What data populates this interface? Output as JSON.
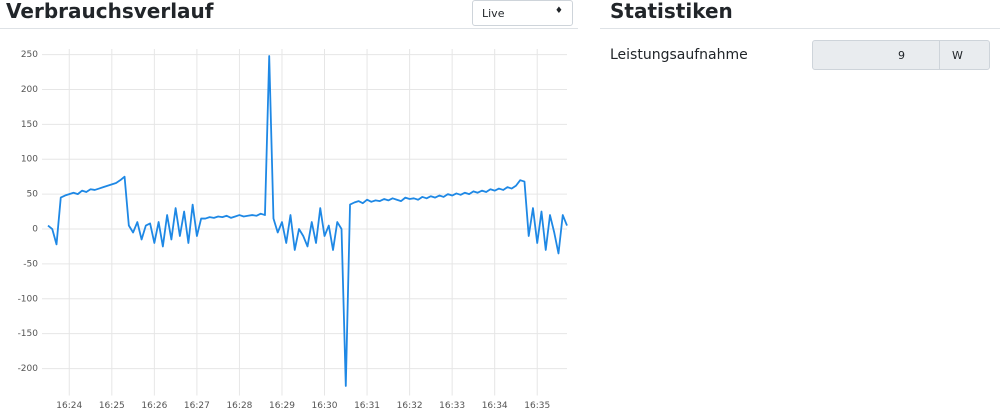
{
  "chart_data": {
    "type": "line",
    "title": "Verbrauchsverlauf",
    "categories": [
      null,
      null,
      null,
      null,
      null,
      "16:24",
      null,
      null,
      null,
      null,
      null,
      null,
      null,
      null,
      null,
      "16:25",
      null,
      null,
      null,
      null,
      null,
      null,
      null,
      null,
      null,
      "16:26",
      null,
      null,
      null,
      null,
      null,
      null,
      null,
      null,
      null,
      "16:27",
      null,
      null,
      null,
      null,
      null,
      null,
      null,
      null,
      null,
      "16:28",
      null,
      null,
      null,
      null,
      null,
      null,
      null,
      null,
      null,
      "16:29",
      null,
      null,
      null,
      null,
      null,
      null,
      null,
      null,
      null,
      "16:30",
      null,
      null,
      null,
      null,
      null,
      null,
      null,
      null,
      null,
      "16:31",
      null,
      null,
      null,
      null,
      null,
      null,
      null,
      null,
      null,
      "16:32",
      null,
      null,
      null,
      null,
      null,
      null,
      null,
      null,
      null,
      "16:33",
      null,
      null,
      null,
      null,
      null,
      null,
      null,
      null,
      null,
      "16:34",
      null,
      null,
      null,
      null,
      null,
      null,
      null,
      null,
      null,
      "16:35",
      null,
      null,
      null,
      null,
      null,
      null,
      null
    ],
    "values": [
      5,
      0,
      -22,
      45,
      48,
      50,
      52,
      50,
      55,
      53,
      57,
      56,
      58,
      60,
      62,
      64,
      66,
      70,
      75,
      5,
      -5,
      10,
      -15,
      5,
      8,
      -20,
      10,
      -25,
      20,
      -15,
      30,
      -10,
      25,
      -20,
      35,
      -10,
      15,
      15,
      17,
      16,
      18,
      17,
      19,
      16,
      18,
      20,
      18,
      19,
      20,
      19,
      22,
      20,
      248,
      15,
      -5,
      10,
      -20,
      20,
      -30,
      0,
      -10,
      -25,
      10,
      -20,
      30,
      -10,
      5,
      -30,
      10,
      0,
      -225,
      35,
      38,
      40,
      37,
      42,
      39,
      41,
      40,
      43,
      41,
      44,
      42,
      40,
      45,
      43,
      44,
      42,
      46,
      44,
      47,
      45,
      48,
      46,
      50,
      48,
      51,
      49,
      52,
      50,
      54,
      52,
      55,
      53,
      57,
      55,
      58,
      56,
      60,
      58,
      62,
      70,
      68,
      -10,
      30,
      -20,
      25,
      -30,
      20,
      -5,
      -35,
      20,
      5
    ],
    "color": "#1e88e5",
    "ylim": [
      -230,
      258
    ],
    "yticks": [
      -200,
      -150,
      -100,
      -50,
      0,
      50,
      100,
      150,
      200,
      250
    ],
    "grid": true
  },
  "range_select": "Live",
  "stats": {
    "title": "Statistiken",
    "rows": [
      {
        "label": "Leistungsaufnahme",
        "value": "9",
        "unit": "W"
      }
    ]
  }
}
